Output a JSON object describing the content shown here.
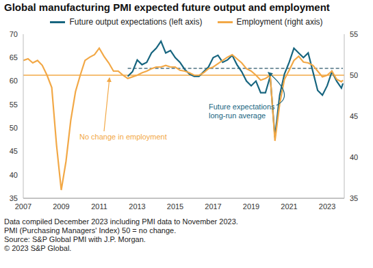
{
  "chart_data": {
    "type": "line",
    "title": "Global manufacturing PMI expected future output and employment",
    "x": [
      2007,
      2007.25,
      2007.5,
      2007.75,
      2008,
      2008.25,
      2008.5,
      2008.75,
      2009,
      2009.25,
      2009.5,
      2009.75,
      2010,
      2010.25,
      2010.5,
      2010.75,
      2011,
      2011.25,
      2011.5,
      2011.75,
      2012,
      2012.25,
      2012.5,
      2012.75,
      2013,
      2013.25,
      2013.5,
      2013.75,
      2014,
      2014.25,
      2014.5,
      2014.75,
      2015,
      2015.25,
      2015.5,
      2015.75,
      2016,
      2016.25,
      2016.5,
      2016.75,
      2017,
      2017.25,
      2017.5,
      2017.75,
      2018,
      2018.25,
      2018.5,
      2018.75,
      2019,
      2019.25,
      2019.5,
      2019.75,
      2020,
      2020.25,
      2020.5,
      2020.75,
      2021,
      2021.25,
      2021.5,
      2021.75,
      2022,
      2022.25,
      2022.5,
      2022.75,
      2023,
      2023.25,
      2023.5,
      2023.75,
      2023.83
    ],
    "xlim": [
      2007,
      2023.9
    ],
    "xticks": [
      2007,
      2009,
      2011,
      2013,
      2015,
      2017,
      2019,
      2021,
      2023
    ],
    "ylim": [
      35,
      70
    ],
    "yticks": [
      35,
      40,
      45,
      50,
      55,
      60,
      65,
      70
    ],
    "y2lim": [
      35,
      55
    ],
    "y2ticks": [
      35,
      40,
      45,
      50,
      55
    ],
    "series": [
      {
        "name": "Future output expectations (left axis)",
        "color": "#17657f",
        "values": [
          null,
          null,
          null,
          null,
          null,
          null,
          null,
          null,
          null,
          null,
          null,
          null,
          null,
          null,
          null,
          null,
          null,
          null,
          null,
          null,
          null,
          null,
          61.0,
          62.0,
          64.5,
          63.5,
          64.0,
          66.0,
          67.0,
          68.5,
          66.0,
          66.5,
          65.0,
          64.0,
          62.5,
          61.5,
          61.0,
          61.0,
          62.0,
          63.0,
          65.0,
          65.5,
          64.0,
          64.5,
          65.5,
          63.5,
          62.0,
          60.0,
          59.0,
          60.0,
          57.5,
          57.5,
          61.0,
          48.0,
          57.0,
          61.5,
          64.0,
          67.0,
          66.0,
          65.0,
          66.0,
          62.0,
          58.0,
          57.0,
          59.0,
          62.0,
          60.0,
          58.5,
          59.5
        ]
      },
      {
        "name": "Employment (right axis)",
        "color": "#f2a846",
        "axis": "y2",
        "values": [
          51.8,
          52.0,
          51.5,
          51.8,
          51.2,
          50.0,
          48.5,
          41.5,
          36.0,
          39.5,
          44.5,
          48.0,
          50.0,
          51.8,
          52.2,
          52.5,
          53.3,
          52.3,
          51.5,
          50.5,
          50.5,
          50.0,
          49.6,
          49.8,
          50.0,
          50.3,
          50.5,
          50.8,
          51.0,
          51.0,
          51.2,
          51.0,
          51.0,
          50.6,
          50.5,
          50.3,
          50.0,
          50.0,
          50.3,
          50.8,
          51.0,
          51.4,
          51.8,
          52.2,
          52.5,
          52.0,
          51.5,
          50.8,
          50.5,
          50.0,
          49.4,
          49.6,
          50.0,
          42.0,
          46.5,
          49.5,
          50.6,
          51.8,
          52.3,
          51.6,
          51.5,
          51.2,
          50.5,
          49.8,
          50.0,
          50.5,
          49.5,
          49.2,
          49.4
        ]
      }
    ],
    "reference_lines": [
      {
        "value": 50,
        "axis": "y2",
        "color": "#f2a846",
        "line_style": "solid",
        "label": [
          "No change in employment"
        ]
      },
      {
        "value": 62.7,
        "axis": "y",
        "x": [
          2012.5,
          2023.83
        ],
        "color": "#4d7282",
        "line_style": "dashed",
        "label": [
          "Future expectations",
          "long-run average"
        ]
      }
    ],
    "notes": [
      "Data compiled December 2023 including PMI data to November 2023.",
      "PMI (Purchasing Managers' Index) 50 = no change.",
      "Source: S&P Global PMI with J.P. Morgan.",
      "© 2023 S&P Global."
    ],
    "grid": false,
    "legend": "top"
  }
}
